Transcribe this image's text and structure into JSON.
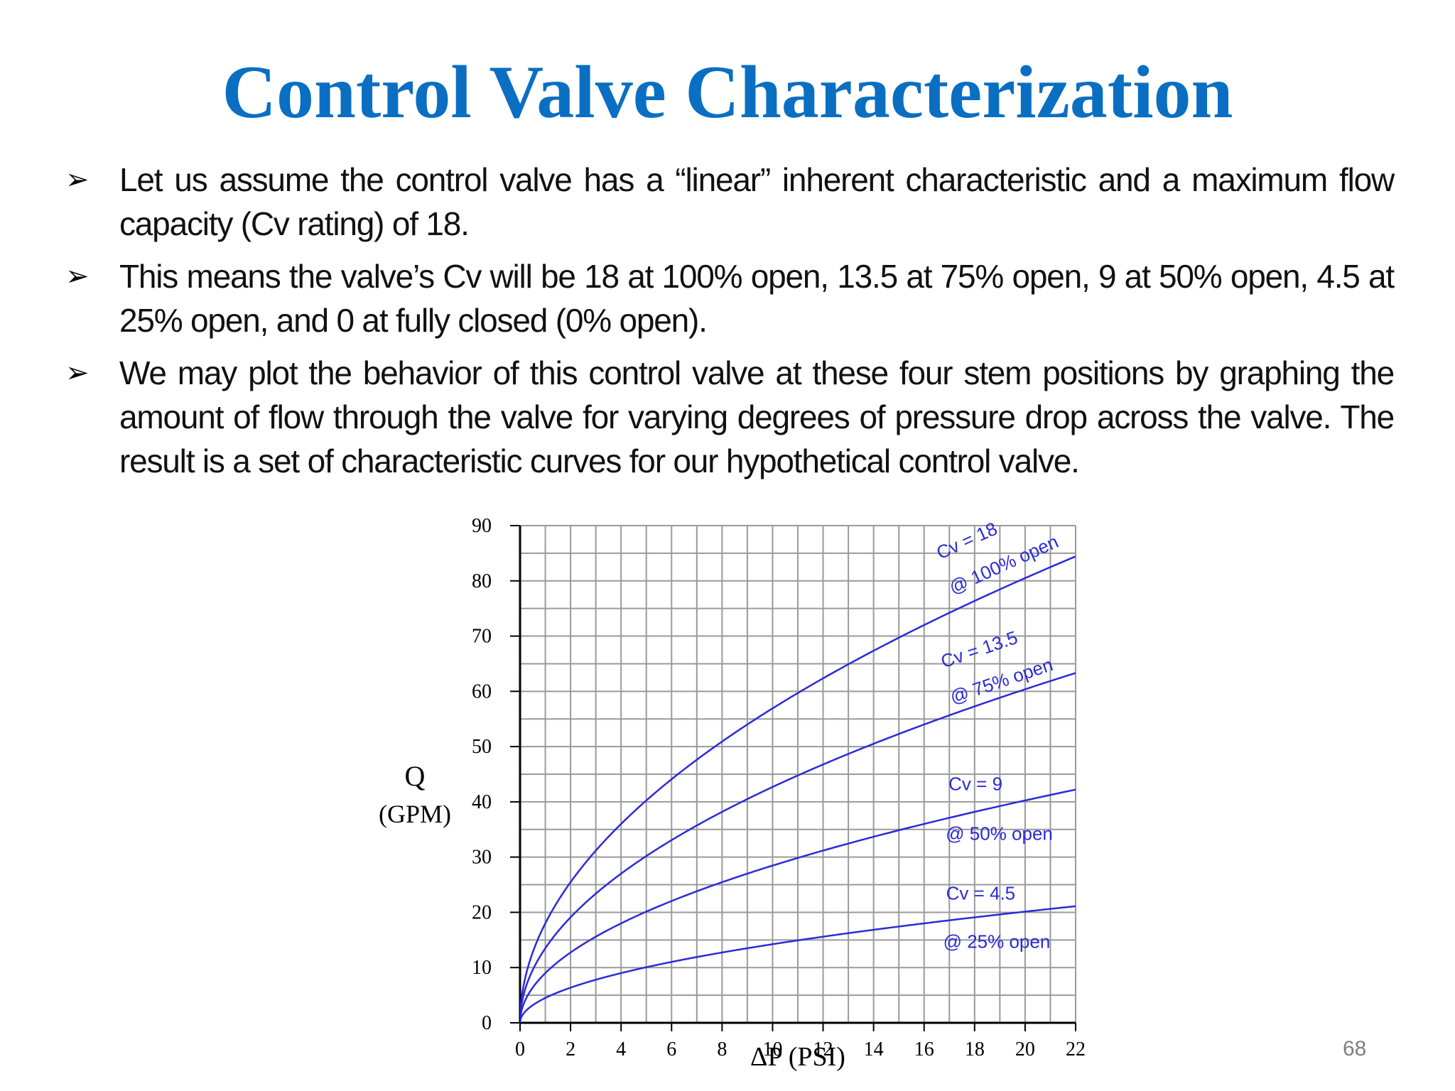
{
  "slide": {
    "title": "Control Valve Characterization",
    "page_number": "68"
  },
  "bullets": [
    {
      "text": "Let us assume the control valve has a “linear” inherent characteristic and a maximum flow capacity (Cv rating) of 18."
    },
    {
      "text": "This means the valve’s Cv will be 18 at 100% open, 13.5 at 75% open, 9 at 50% open, 4.5 at 25% open, and 0 at fully closed (0% open)."
    },
    {
      "text": "We may plot the behavior of this control valve at these four stem positions by graphing the amount of flow through the valve for varying degrees of pressure drop across the valve. The result is a set of characteristic curves for our hypothetical control valve."
    }
  ],
  "colors": {
    "title": "#0a6fc2",
    "curve": "#2b2bd8",
    "grid": "#9a9a9a",
    "axis": "#000000"
  },
  "chart_data": {
    "type": "line",
    "title": "",
    "xlabel": "ΔP (PSI)",
    "ylabel": "Q",
    "ylabel_unit": "(GPM)",
    "xlim": [
      0,
      22
    ],
    "ylim": [
      0,
      90
    ],
    "x_ticks": [
      0,
      2,
      4,
      6,
      8,
      10,
      12,
      14,
      16,
      18,
      20,
      22
    ],
    "y_ticks": [
      0,
      10,
      20,
      30,
      40,
      50,
      60,
      70,
      80,
      90
    ],
    "grid": true,
    "grid_x_step": 1,
    "grid_y_step": 5,
    "x": [
      0,
      0.25,
      0.5,
      1,
      2,
      3,
      4,
      6,
      8,
      10,
      12,
      14,
      16,
      18,
      20,
      22
    ],
    "series": [
      {
        "cv": 18,
        "label_top": "Cv = 18",
        "label_bottom": "@ 100% open",
        "values": [
          0,
          9.0,
          12.7,
          18.0,
          25.5,
          31.2,
          36.0,
          44.1,
          50.9,
          56.9,
          62.4,
          67.3,
          72.0,
          76.4,
          80.5,
          84.4
        ]
      },
      {
        "cv": 13.5,
        "label_top": "Cv = 13.5",
        "label_bottom": "@ 75% open",
        "values": [
          0,
          6.8,
          9.5,
          13.5,
          19.1,
          23.4,
          27.0,
          33.1,
          38.2,
          42.7,
          46.8,
          50.5,
          54.0,
          57.3,
          60.4,
          63.3
        ]
      },
      {
        "cv": 9,
        "label_top": "Cv = 9",
        "label_bottom": "@ 50% open",
        "values": [
          0,
          4.5,
          6.4,
          9.0,
          12.7,
          15.6,
          18.0,
          22.0,
          25.5,
          28.5,
          31.2,
          33.7,
          36.0,
          38.2,
          40.2,
          42.2
        ]
      },
      {
        "cv": 4.5,
        "label_top": "Cv = 4.5",
        "label_bottom": "@ 25% open",
        "values": [
          0,
          2.3,
          3.2,
          4.5,
          6.4,
          7.8,
          9.0,
          11.0,
          12.7,
          14.2,
          15.6,
          16.8,
          18.0,
          19.1,
          20.1,
          21.1
        ]
      }
    ]
  }
}
